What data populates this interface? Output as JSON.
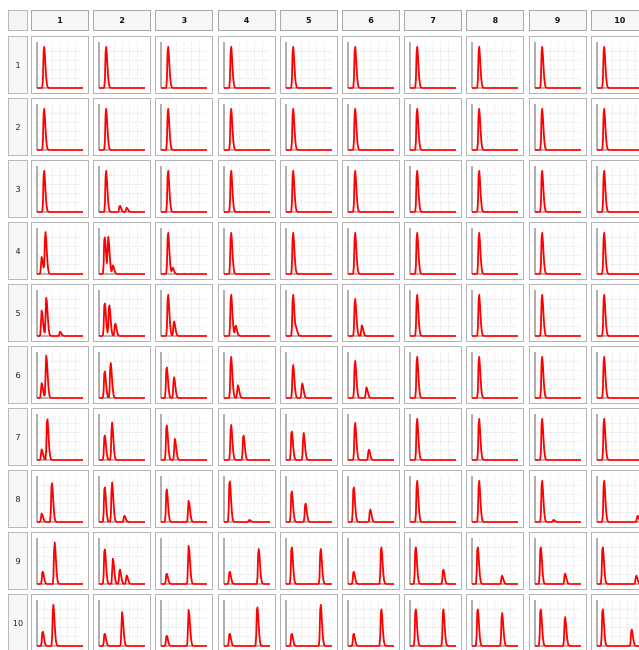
{
  "columns": [
    "1",
    "2",
    "3",
    "4",
    "5",
    "6",
    "7",
    "8",
    "9",
    "10"
  ],
  "rows": [
    "1",
    "2",
    "3",
    "4",
    "5",
    "6",
    "7",
    "8",
    "9",
    "10"
  ],
  "colors": {
    "trace": "#ff0000",
    "grid": "#c8c8c8",
    "frame": "#3a3a3a",
    "cell_border": "#b5b5b5"
  },
  "peaks": [
    [
      [
        [
          0.15,
          1.0
        ]
      ],
      [
        [
          0.15,
          1.0
        ]
      ],
      [
        [
          0.15,
          1.0
        ]
      ],
      [
        [
          0.15,
          1.0
        ]
      ],
      [
        [
          0.15,
          1.0
        ]
      ],
      [
        [
          0.15,
          1.0
        ]
      ],
      [
        [
          0.15,
          1.0
        ]
      ],
      [
        [
          0.15,
          1.0
        ]
      ],
      [
        [
          0.15,
          1.0
        ]
      ],
      [
        [
          0.15,
          1.0
        ]
      ]
    ],
    [
      [
        [
          0.15,
          1.0
        ]
      ],
      [
        [
          0.15,
          1.0
        ]
      ],
      [
        [
          0.15,
          1.0
        ]
      ],
      [
        [
          0.15,
          1.0
        ]
      ],
      [
        [
          0.15,
          1.0
        ]
      ],
      [
        [
          0.15,
          1.0
        ]
      ],
      [
        [
          0.15,
          1.0
        ]
      ],
      [
        [
          0.15,
          1.0
        ]
      ],
      [
        [
          0.15,
          1.0
        ]
      ],
      [
        [
          0.15,
          1.0
        ]
      ]
    ],
    [
      [
        [
          0.15,
          1.0
        ]
      ],
      [
        [
          0.15,
          1.0
        ],
        [
          0.45,
          0.15
        ],
        [
          0.6,
          0.1
        ]
      ],
      [
        [
          0.15,
          1.0
        ]
      ],
      [
        [
          0.15,
          1.0
        ]
      ],
      [
        [
          0.15,
          1.0
        ]
      ],
      [
        [
          0.15,
          1.0
        ]
      ],
      [
        [
          0.15,
          1.0
        ]
      ],
      [
        [
          0.15,
          1.0
        ]
      ],
      [
        [
          0.15,
          1.0
        ]
      ],
      [
        [
          0.15,
          1.0
        ]
      ]
    ],
    [
      [
        [
          0.1,
          0.4
        ],
        [
          0.18,
          1.0
        ]
      ],
      [
        [
          0.12,
          0.9
        ],
        [
          0.2,
          0.85
        ],
        [
          0.3,
          0.2
        ]
      ],
      [
        [
          0.15,
          1.0
        ],
        [
          0.25,
          0.15
        ]
      ],
      [
        [
          0.15,
          1.0
        ]
      ],
      [
        [
          0.15,
          1.0
        ]
      ],
      [
        [
          0.15,
          1.0
        ]
      ],
      [
        [
          0.15,
          1.0
        ]
      ],
      [
        [
          0.15,
          1.0
        ]
      ],
      [
        [
          0.15,
          1.0
        ]
      ],
      [
        [
          0.15,
          1.0
        ]
      ]
    ],
    [
      [
        [
          0.1,
          0.6
        ],
        [
          0.2,
          0.9
        ],
        [
          0.5,
          0.1
        ]
      ],
      [
        [
          0.12,
          0.8
        ],
        [
          0.22,
          0.75
        ],
        [
          0.35,
          0.3
        ]
      ],
      [
        [
          0.15,
          1.0
        ],
        [
          0.28,
          0.35
        ]
      ],
      [
        [
          0.15,
          1.0
        ],
        [
          0.25,
          0.25
        ]
      ],
      [
        [
          0.15,
          1.0
        ],
        [
          0.22,
          0.15
        ]
      ],
      [
        [
          0.15,
          0.9
        ],
        [
          0.3,
          0.25
        ]
      ],
      [
        [
          0.15,
          1.0
        ]
      ],
      [
        [
          0.15,
          1.0
        ]
      ],
      [
        [
          0.15,
          1.0
        ]
      ],
      [
        [
          0.15,
          1.0
        ]
      ]
    ],
    [
      [
        [
          0.1,
          0.35
        ],
        [
          0.2,
          1.0
        ]
      ],
      [
        [
          0.12,
          0.65
        ],
        [
          0.25,
          0.85
        ]
      ],
      [
        [
          0.12,
          0.75
        ],
        [
          0.28,
          0.5
        ]
      ],
      [
        [
          0.15,
          1.0
        ],
        [
          0.3,
          0.3
        ]
      ],
      [
        [
          0.15,
          0.8
        ],
        [
          0.35,
          0.35
        ]
      ],
      [
        [
          0.15,
          0.9
        ],
        [
          0.4,
          0.25
        ]
      ],
      [
        [
          0.15,
          1.0
        ]
      ],
      [
        [
          0.15,
          1.0
        ]
      ],
      [
        [
          0.15,
          1.0
        ]
      ],
      [
        [
          0.15,
          1.0
        ]
      ]
    ],
    [
      [
        [
          0.1,
          0.25
        ],
        [
          0.22,
          1.0
        ]
      ],
      [
        [
          0.12,
          0.6
        ],
        [
          0.28,
          0.9
        ]
      ],
      [
        [
          0.12,
          0.85
        ],
        [
          0.3,
          0.5
        ]
      ],
      [
        [
          0.15,
          0.85
        ],
        [
          0.42,
          0.6
        ]
      ],
      [
        [
          0.12,
          0.7
        ],
        [
          0.38,
          0.65
        ]
      ],
      [
        [
          0.15,
          0.9
        ],
        [
          0.45,
          0.25
        ]
      ],
      [
        [
          0.15,
          1.0
        ]
      ],
      [
        [
          0.15,
          1.0
        ]
      ],
      [
        [
          0.15,
          1.0
        ]
      ],
      [
        [
          0.15,
          1.0
        ]
      ]
    ],
    [
      [
        [
          0.1,
          0.2
        ],
        [
          0.32,
          0.95
        ]
      ],
      [
        [
          0.12,
          0.85
        ],
        [
          0.28,
          0.95
        ],
        [
          0.55,
          0.15
        ]
      ],
      [
        [
          0.12,
          0.8
        ],
        [
          0.6,
          0.5
        ]
      ],
      [
        [
          0.12,
          1.0
        ],
        [
          0.55,
          0.05
        ]
      ],
      [
        [
          0.12,
          0.75
        ],
        [
          0.42,
          0.45
        ]
      ],
      [
        [
          0.12,
          0.85
        ],
        [
          0.48,
          0.3
        ]
      ],
      [
        [
          0.15,
          1.0
        ]
      ],
      [
        [
          0.15,
          1.0
        ]
      ],
      [
        [
          0.15,
          1.0
        ],
        [
          0.4,
          0.05
        ]
      ],
      [
        [
          0.15,
          1.0
        ],
        [
          0.88,
          0.15
        ]
      ]
    ],
    [
      [
        [
          0.12,
          0.3
        ],
        [
          0.38,
          1.0
        ]
      ],
      [
        [
          0.12,
          0.85
        ],
        [
          0.3,
          0.6
        ],
        [
          0.45,
          0.35
        ],
        [
          0.6,
          0.2
        ]
      ],
      [
        [
          0.12,
          0.25
        ],
        [
          0.6,
          0.9
        ]
      ],
      [
        [
          0.12,
          0.3
        ],
        [
          0.75,
          0.85
        ]
      ],
      [
        [
          0.12,
          0.9
        ],
        [
          0.75,
          0.85
        ]
      ],
      [
        [
          0.12,
          0.3
        ],
        [
          0.72,
          0.9
        ]
      ],
      [
        [
          0.12,
          0.9
        ],
        [
          0.72,
          0.35
        ]
      ],
      [
        [
          0.12,
          0.9
        ],
        [
          0.65,
          0.2
        ]
      ],
      [
        [
          0.12,
          0.9
        ],
        [
          0.65,
          0.25
        ]
      ],
      [
        [
          0.12,
          0.9
        ],
        [
          0.85,
          0.2
        ]
      ]
    ],
    [
      [
        [
          0.12,
          0.35
        ],
        [
          0.35,
          1.0
        ]
      ],
      [
        [
          0.12,
          0.3
        ],
        [
          0.5,
          0.8
        ]
      ],
      [
        [
          0.12,
          0.25
        ],
        [
          0.6,
          0.85
        ]
      ],
      [
        [
          0.12,
          0.3
        ],
        [
          0.72,
          0.95
        ]
      ],
      [
        [
          0.12,
          0.3
        ],
        [
          0.75,
          1.0
        ]
      ],
      [
        [
          0.12,
          0.3
        ],
        [
          0.72,
          0.9
        ]
      ],
      [
        [
          0.12,
          0.9
        ],
        [
          0.72,
          0.9
        ]
      ],
      [
        [
          0.12,
          0.9
        ],
        [
          0.65,
          0.8
        ]
      ],
      [
        [
          0.12,
          0.9
        ],
        [
          0.65,
          0.7
        ]
      ],
      [
        [
          0.12,
          0.9
        ],
        [
          0.75,
          0.4
        ]
      ]
    ]
  ]
}
